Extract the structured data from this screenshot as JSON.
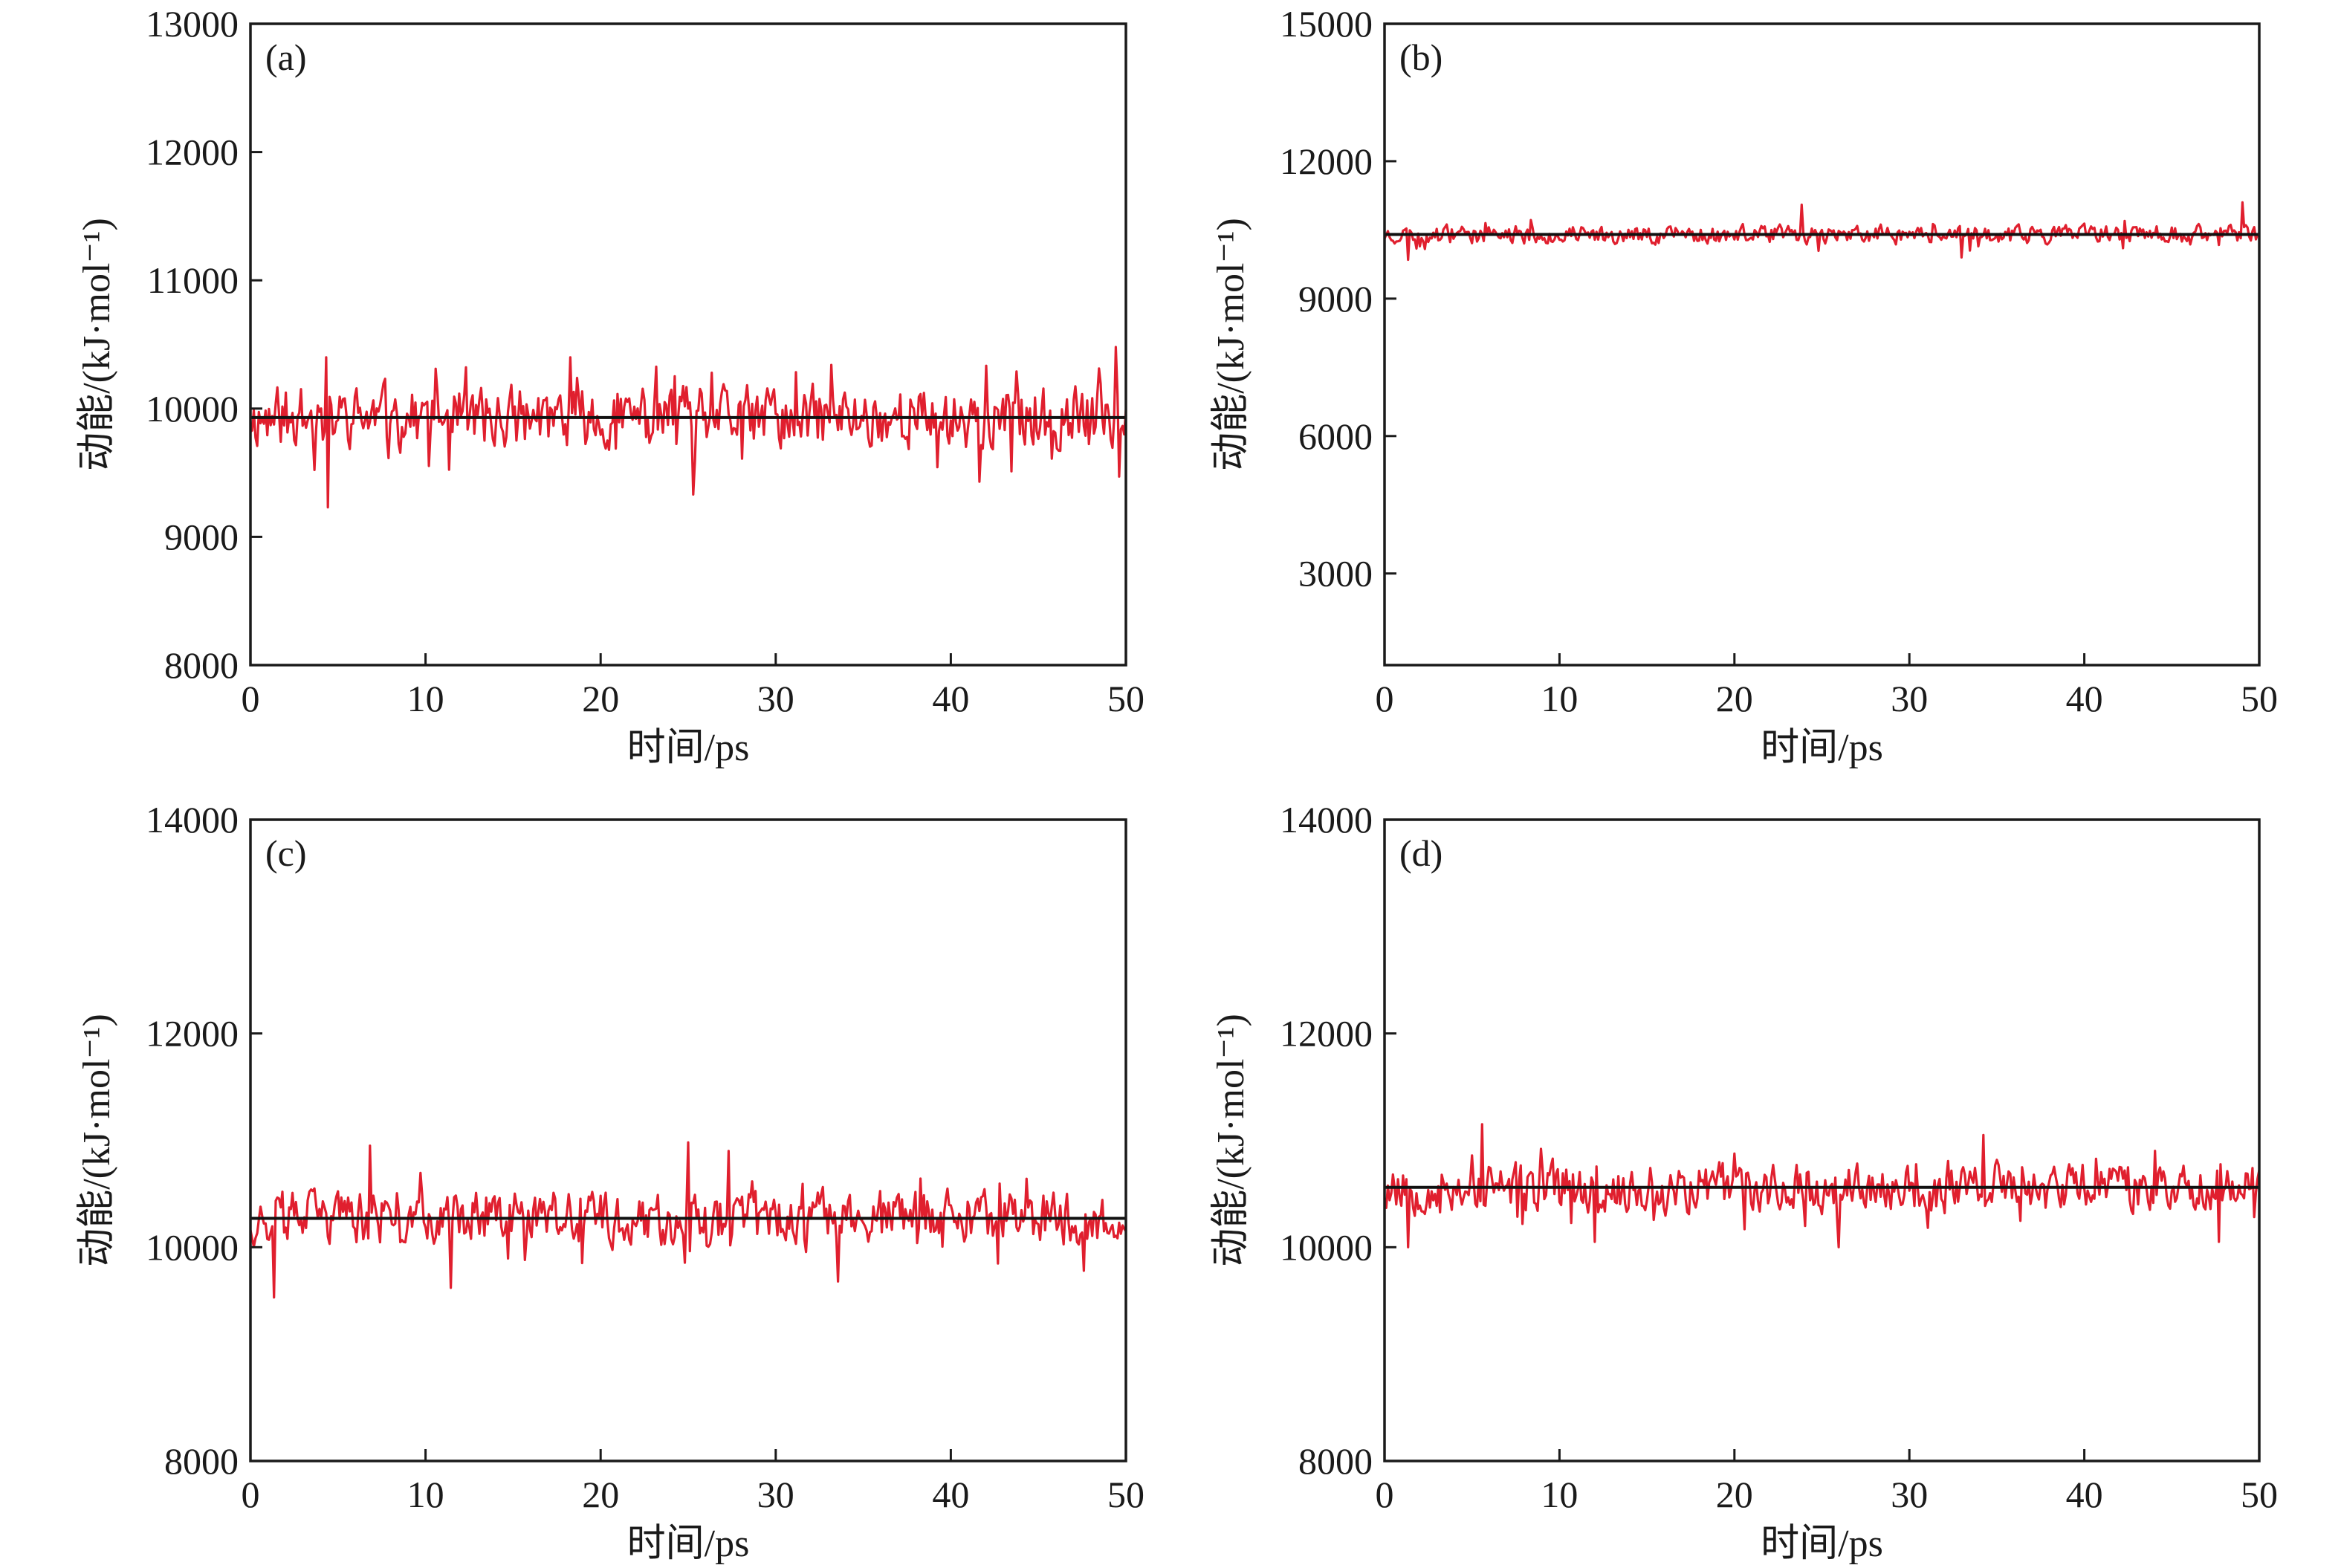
{
  "chart_data": [
    {
      "type": "line",
      "panel_label": "(a)",
      "xlabel": "时间/ps",
      "ylabel": "动能/(kJ·mol⁻¹)",
      "xlim": [
        0,
        50
      ],
      "ylim": [
        8000,
        13000
      ],
      "x_ticks": [
        "0",
        "10",
        "20",
        "30",
        "40",
        "50"
      ],
      "y_ticks": [
        "8000",
        "9000",
        "10000",
        "11000",
        "12000",
        "13000"
      ],
      "mean": 9930,
      "amplitude": 240,
      "seed": 11,
      "spikes": [
        {
          "x": 4.3,
          "y": 10400
        },
        {
          "x": 4.4,
          "y": 9230
        },
        {
          "x": 18.3,
          "y": 10400
        },
        {
          "x": 25.3,
          "y": 9330
        },
        {
          "x": 33.2,
          "y": 10340
        },
        {
          "x": 41.6,
          "y": 9430
        },
        {
          "x": 49.4,
          "y": 10480
        },
        {
          "x": 49.6,
          "y": 9470
        }
      ],
      "colors": {
        "series": "#e01f2e",
        "mean_line": "#111111"
      }
    },
    {
      "type": "line",
      "panel_label": "(b)",
      "xlabel": "时间/ps",
      "ylabel": "动能/(kJ·mol⁻¹)",
      "xlim": [
        0,
        50
      ],
      "ylim": [
        1000,
        15000
      ],
      "x_ticks": [
        "0",
        "10",
        "20",
        "30",
        "40",
        "50"
      ],
      "y_ticks": [
        "3000",
        "6000",
        "9000",
        "12000",
        "15000"
      ],
      "y_tick_values": [
        3000,
        6000,
        9000,
        12000,
        15000
      ],
      "mean": 10400,
      "amplitude": 200,
      "seed": 23,
      "spikes": [
        {
          "x": 1.3,
          "y": 9850
        },
        {
          "x": 23.8,
          "y": 11050
        },
        {
          "x": 33.0,
          "y": 9900
        },
        {
          "x": 49.0,
          "y": 11100
        }
      ],
      "colors": {
        "series": "#e01f2e",
        "mean_line": "#111111"
      }
    },
    {
      "type": "line",
      "panel_label": "(c)",
      "xlabel": "时间/ps",
      "ylabel": "动能/(kJ·mol⁻¹)",
      "xlim": [
        0,
        50
      ],
      "ylim": [
        8000,
        14000
      ],
      "x_ticks": [
        "0",
        "10",
        "20",
        "30",
        "40",
        "50"
      ],
      "y_ticks": [
        "8000",
        "10000",
        "12000",
        "14000"
      ],
      "y_tick_values": [
        8000,
        10000,
        12000,
        14000
      ],
      "mean": 10270,
      "amplitude": 250,
      "seed": 37,
      "spikes": [
        {
          "x": 1.3,
          "y": 9530
        },
        {
          "x": 6.8,
          "y": 10950
        },
        {
          "x": 11.4,
          "y": 9620
        },
        {
          "x": 25.0,
          "y": 10980
        },
        {
          "x": 27.3,
          "y": 10900
        },
        {
          "x": 33.6,
          "y": 9680
        },
        {
          "x": 47.6,
          "y": 9780
        }
      ],
      "colors": {
        "series": "#e01f2e",
        "mean_line": "#111111"
      }
    },
    {
      "type": "line",
      "panel_label": "(d)",
      "xlabel": "时间/ps",
      "ylabel": "动能/(kJ·mol⁻¹)",
      "xlim": [
        0,
        50
      ],
      "ylim": [
        8000,
        14000
      ],
      "x_ticks": [
        "0",
        "10",
        "20",
        "30",
        "40",
        "50"
      ],
      "y_ticks": [
        "8000",
        "10000",
        "12000",
        "14000"
      ],
      "y_tick_values": [
        8000,
        10000,
        12000,
        14000
      ],
      "mean": 10560,
      "amplitude": 230,
      "seed": 53,
      "spikes": [
        {
          "x": 1.3,
          "y": 10000
        },
        {
          "x": 5.6,
          "y": 11150
        },
        {
          "x": 12.0,
          "y": 10050
        },
        {
          "x": 26.0,
          "y": 10000
        },
        {
          "x": 34.2,
          "y": 11050
        },
        {
          "x": 47.7,
          "y": 10050
        }
      ],
      "colors": {
        "series": "#e01f2e",
        "mean_line": "#111111"
      }
    }
  ]
}
